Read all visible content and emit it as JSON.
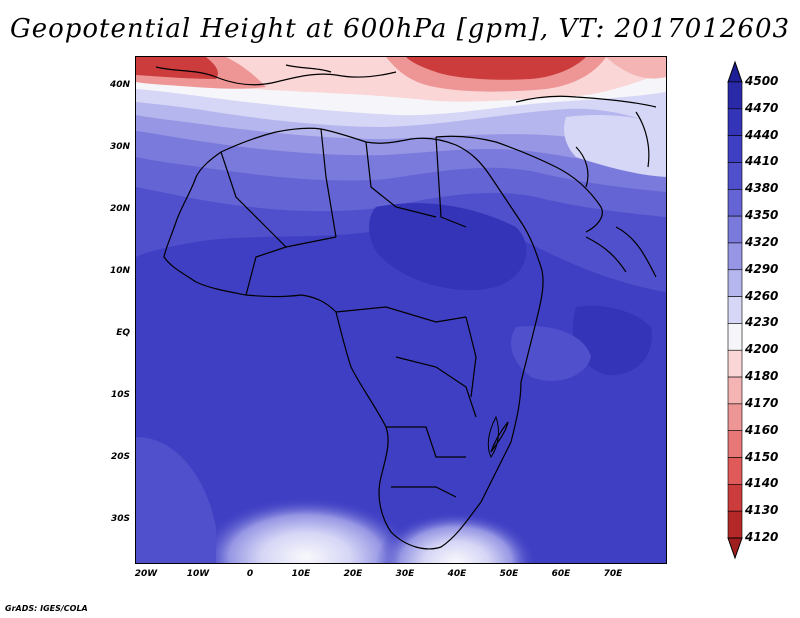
{
  "title": "Geopotential Height at 600hPa [gpm], VT: 2017012603",
  "credit": "GrADS: IGES/COLA",
  "lat_ticks": [
    "40N",
    "30N",
    "20N",
    "10N",
    "EQ",
    "10S",
    "20S",
    "30S"
  ],
  "lon_ticks": [
    "20W",
    "10W",
    "0",
    "10E",
    "20E",
    "30E",
    "40E",
    "50E",
    "60E",
    "70E"
  ],
  "colorbar": {
    "labels": [
      "4500",
      "4470",
      "4440",
      "4410",
      "4380",
      "4350",
      "4320",
      "4290",
      "4260",
      "4230",
      "4200",
      "4180",
      "4170",
      "4160",
      "4150",
      "4140",
      "4130",
      "4120"
    ],
    "colors": [
      "#1e1e96",
      "#2a2aa8",
      "#3434b8",
      "#3f3fc4",
      "#5050cc",
      "#6464d4",
      "#7a7adc",
      "#9696e4",
      "#b6b6ee",
      "#d6d6f6",
      "#f6f6fa",
      "#fad6d6",
      "#f4b4b4",
      "#ee9696",
      "#e87878",
      "#e05a5a",
      "#cc3c3c",
      "#b42828",
      "#a01e1e"
    ]
  }
}
